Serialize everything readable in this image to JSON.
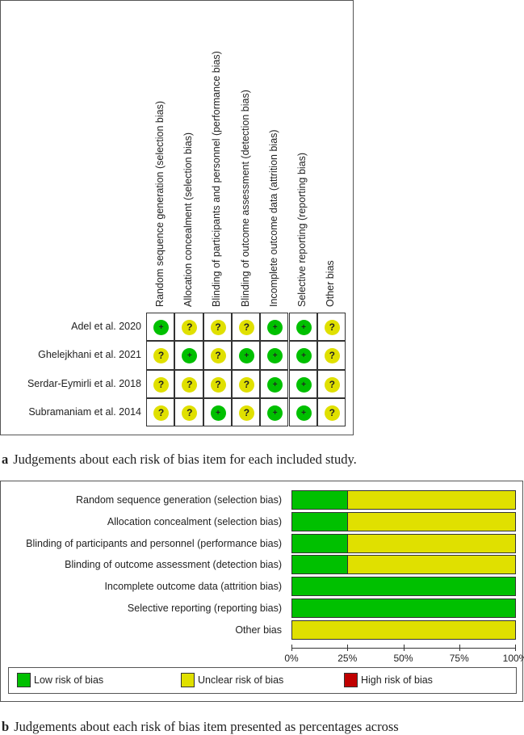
{
  "panel_a": {
    "columns": [
      "Random sequence generation (selection bias)",
      "Allocation concealment (selection bias)",
      "Blinding of participants and personnel (performance bias)",
      "Blinding of outcome assessment (detection bias)",
      "Incomplete outcome data (attrition bias)",
      "Selective reporting (reporting bias)",
      "Other bias"
    ],
    "studies": [
      {
        "name": "Adel et al. 2020",
        "judgements": [
          "+",
          "?",
          "?",
          "?",
          "+",
          "+",
          "?"
        ]
      },
      {
        "name": "Ghelejkhani et al. 2021",
        "judgements": [
          "?",
          "+",
          "?",
          "+",
          "+",
          "+",
          "?"
        ]
      },
      {
        "name": "Serdar-Eymirli et al. 2018",
        "judgements": [
          "?",
          "?",
          "?",
          "?",
          "+",
          "+",
          "?"
        ]
      },
      {
        "name": "Subramaniam et al. 2014",
        "judgements": [
          "?",
          "?",
          "+",
          "?",
          "+",
          "+",
          "?"
        ]
      }
    ],
    "caption_letter": "a",
    "caption": "Judgements about each risk of bias item for each included study."
  },
  "chart_data": {
    "type": "bar",
    "orientation": "horizontal-stacked",
    "categories": [
      "Random sequence generation (selection bias)",
      "Allocation concealment (selection bias)",
      "Blinding of participants and personnel (performance bias)",
      "Blinding of outcome assessment (detection bias)",
      "Incomplete outcome data (attrition bias)",
      "Selective reporting (reporting bias)",
      "Other bias"
    ],
    "series": [
      {
        "name": "Low risk of bias",
        "color": "#00c000",
        "values": [
          25,
          25,
          25,
          25,
          100,
          100,
          0
        ]
      },
      {
        "name": "Unclear risk of bias",
        "color": "#e0e000",
        "values": [
          75,
          75,
          75,
          75,
          0,
          0,
          100
        ]
      },
      {
        "name": "High risk of bias",
        "color": "#c00000",
        "values": [
          0,
          0,
          0,
          0,
          0,
          0,
          0
        ]
      }
    ],
    "xlim": [
      0,
      100
    ],
    "xticks": [
      "0%",
      "25%",
      "50%",
      "75%",
      "100%"
    ],
    "legend": "bottom",
    "grid": false
  },
  "panel_b": {
    "caption_letter": "b",
    "caption": "Judgements about each risk of bias item presented as percentages across"
  },
  "colors": {
    "low": "#00c000",
    "unclear": "#e0e000",
    "high": "#c00000"
  }
}
